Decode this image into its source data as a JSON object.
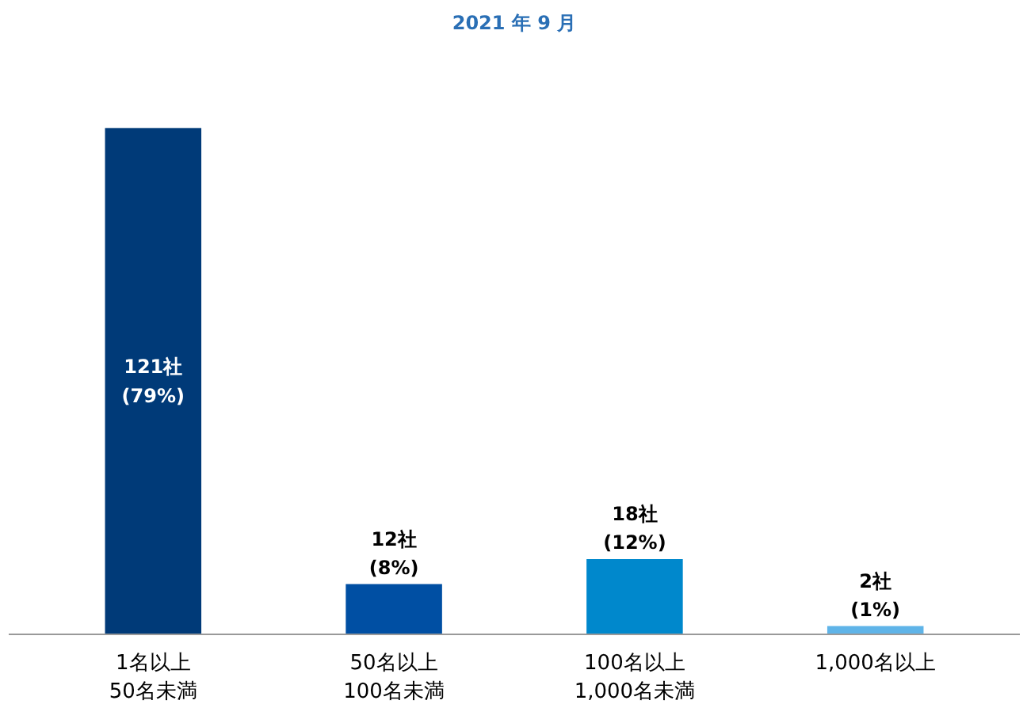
{
  "chart_data": {
    "type": "bar",
    "title": "2021 年 9 月",
    "categories": [
      "1名以上\n50名未満",
      "50名以上\n100名未満",
      "100名以上\n1,000名未満",
      "1,000名以上"
    ],
    "values": [
      121,
      12,
      18,
      2
    ],
    "colors": [
      "#003a78",
      "#004fa3",
      "#0088cc",
      "#5fb4e8"
    ],
    "value_labels": [
      "121社\n(79%)",
      "12社\n(8%)",
      "18社\n(12%)",
      "2社\n(1%)"
    ],
    "data_labels": false
  }
}
